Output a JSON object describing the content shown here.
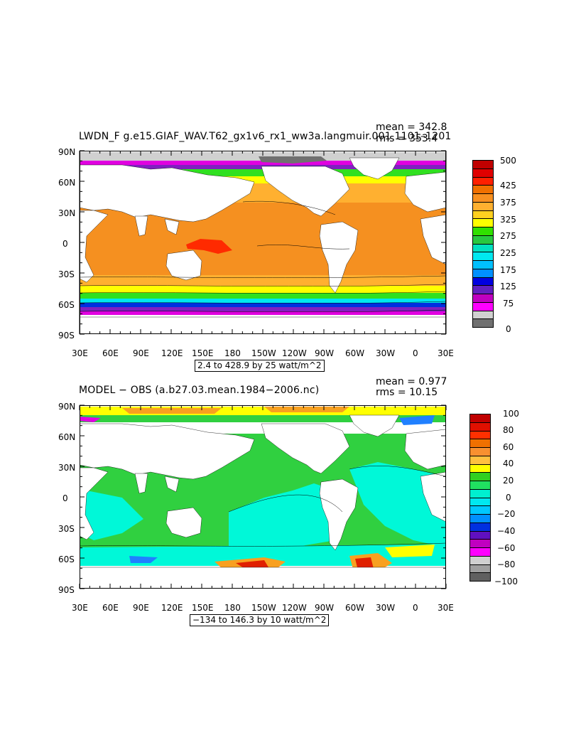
{
  "panels": [
    {
      "title": "LWDN_F g.e15.GIAF_WAV.T62_gx1v6_rx1_ww3a.langmuir.001 1101–1201",
      "mean": "mean = 342.8",
      "rms": "rms = 353.4",
      "range": "2.4 to 428.9 by 25 watt/m^2",
      "lat_labels": [
        "90N",
        "60N",
        "30N",
        "0",
        "30S",
        "60S",
        "90S"
      ],
      "lon_labels": [
        "30E",
        "60E",
        "90E",
        "120E",
        "150E",
        "180",
        "150W",
        "120W",
        "90W",
        "60W",
        "30W",
        "0",
        "30E"
      ],
      "colorbar": {
        "labels": [
          "500",
          "425",
          "375",
          "325",
          "275",
          "225",
          "175",
          "125",
          "75",
          "0"
        ],
        "colors": [
          "#c00000",
          "#e00000",
          "#ff2000",
          "#f07000",
          "#f89020",
          "#ffb030",
          "#ffd020",
          "#ffff00",
          "#30e000",
          "#28c840",
          "#00e0c0",
          "#00e8f0",
          "#00c0ff",
          "#0090ff",
          "#0000e0",
          "#6020c0",
          "#c000c0",
          "#ff00ff",
          "#d0d0d0",
          "#707070"
        ]
      }
    },
    {
      "title": "MODEL − OBS (a.b27.03.mean.1984−2006.nc)",
      "mean": "mean = 0.977",
      "rms": "rms = 10.15",
      "range": "−134 to 146.3 by 10 watt/m^2",
      "lat_labels": [
        "90N",
        "60N",
        "30N",
        "0",
        "30S",
        "60S",
        "90S"
      ],
      "lon_labels": [
        "30E",
        "60E",
        "90E",
        "120E",
        "150E",
        "180",
        "150W",
        "120W",
        "90W",
        "60W",
        "30W",
        "0",
        "30E"
      ],
      "colorbar": {
        "labels": [
          "100",
          "80",
          "60",
          "40",
          "20",
          "0",
          "−20",
          "−40",
          "−60",
          "−80",
          "−100"
        ],
        "colors": [
          "#c00000",
          "#e01000",
          "#ff3000",
          "#f07000",
          "#f89030",
          "#ffc040",
          "#ffff00",
          "#30d020",
          "#20e060",
          "#00f0d0",
          "#00e8f0",
          "#00c8ff",
          "#0090ff",
          "#0030e0",
          "#6010c0",
          "#c000c0",
          "#ff00ff",
          "#d0d0d0",
          "#a0a0a0",
          "#606060"
        ]
      }
    }
  ],
  "map_colors": {
    "land": "#ffffff",
    "top_main": "#f59020",
    "top_warm": "#ff2a00",
    "top_mid": "#ffb030",
    "top_yellow": "#ffff00",
    "top_green": "#30e020",
    "top_cyan": "#00e8f0",
    "top_blue": "#0030e0",
    "top_purple": "#8020c0",
    "top_magenta": "#e000e0",
    "top_gray": "#d0d0d0",
    "top_darkgray": "#707070",
    "bot_green": "#30d040",
    "bot_cyan": "#00f8d8",
    "bot_yellow": "#ffff00",
    "bot_orange": "#f8a020",
    "bot_red": "#e02000",
    "bot_blue": "#2080ff",
    "bot_magenta": "#e000e0"
  }
}
